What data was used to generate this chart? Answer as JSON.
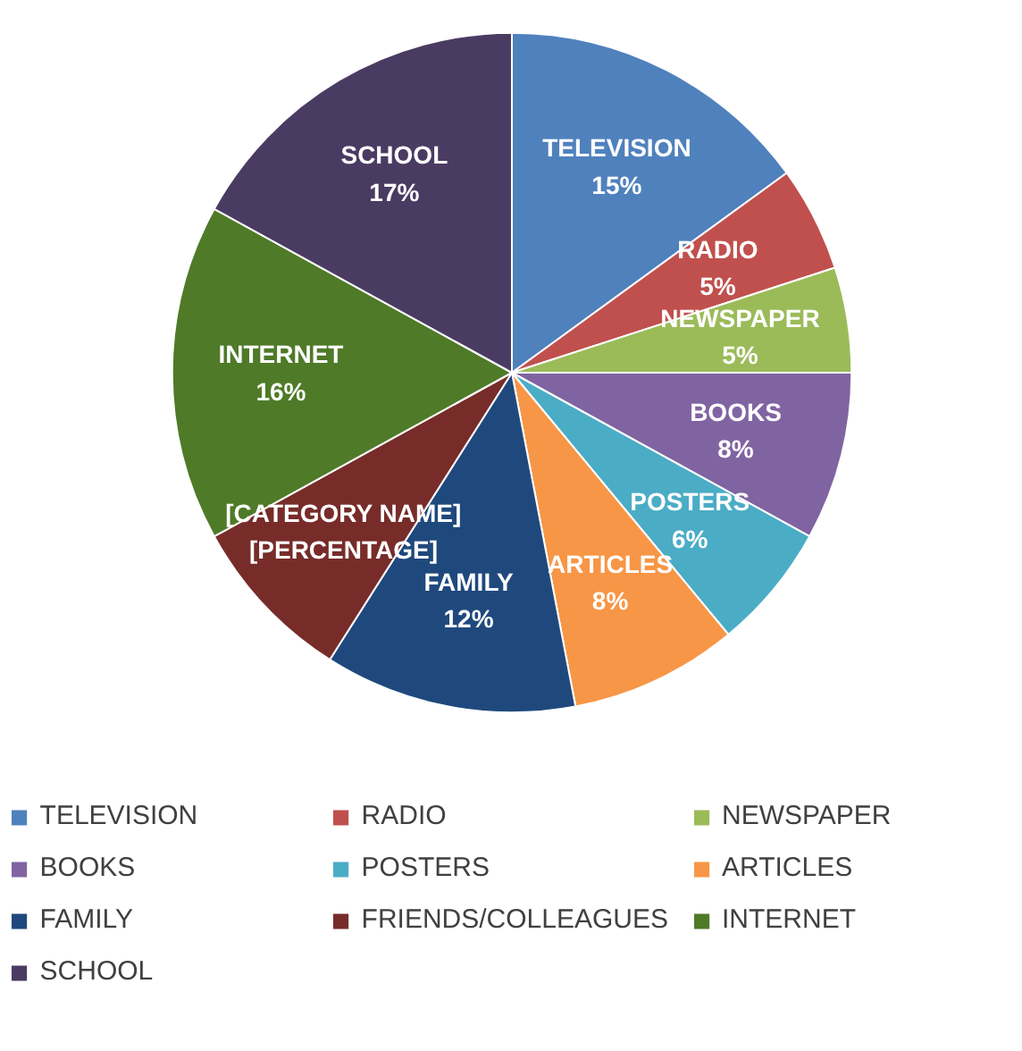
{
  "chart_data": {
    "type": "pie",
    "categories": [
      "TELEVISION",
      "RADIO",
      "NEWSPAPER",
      "BOOKS",
      "POSTERS",
      "ARTICLES",
      "FAMILY",
      "FRIENDS/COLLEAGUES",
      "INTERNET",
      "SCHOOL"
    ],
    "values": [
      15,
      5,
      5,
      8,
      6,
      8,
      12,
      8,
      16,
      17
    ],
    "colors": [
      "#4f81bd",
      "#c0504d",
      "#9bbb59",
      "#8064a2",
      "#4bacc6",
      "#f79646",
      "#1f497d",
      "#772c2a",
      "#4f7a28",
      "#4a3b62"
    ],
    "value_labels": [
      "TELEVISION\n15%",
      "RADIO\n5%",
      "NEWSPAPER\n5%",
      "BOOKS\n8%",
      "POSTERS\n6%",
      "ARTICLES\n8%",
      "FAMILY\n12%",
      "[CATEGORY NAME]\n[PERCENTAGE]",
      "INTERNET\n16%",
      "SCHOOL\n17%"
    ],
    "legend": "bottom"
  }
}
